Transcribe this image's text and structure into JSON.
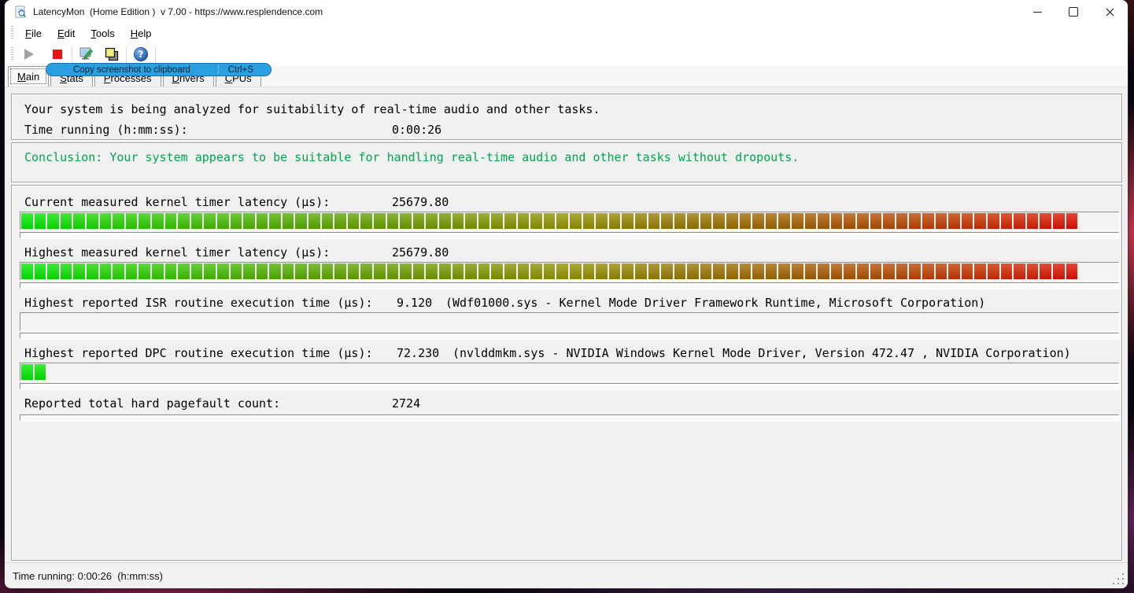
{
  "window": {
    "title": "LatencyMon  (Home Edition )  v 7.00 - https://www.resplendence.com"
  },
  "menu": {
    "items": [
      "File",
      "Edit",
      "Tools",
      "Help"
    ]
  },
  "toolbar": {
    "icons": [
      "start-icon",
      "stop-icon",
      "screenshot-tool-icon",
      "copy-screenshot-icon",
      "help-icon"
    ],
    "tooltip": {
      "label": "Copy screenshot to clipboard",
      "shortcut": "Ctrl+S"
    }
  },
  "tabs": [
    {
      "label": "Main",
      "selected": true
    },
    {
      "label": "Stats",
      "selected": false
    },
    {
      "label": "Processes",
      "selected": false
    },
    {
      "label": "Drivers",
      "selected": false
    },
    {
      "label": "CPUs",
      "selected": false
    }
  ],
  "main": {
    "status_line": "Your system is being analyzed for suitability of real-time audio and other tasks.",
    "time_running": {
      "label": "Time running (h:mm:ss):",
      "value": "0:00:26"
    },
    "conclusion": {
      "text": "Conclusion: Your system appears to be suitable for handling real-time audio and other tasks without dropouts.",
      "color": "#00a44c"
    },
    "stats": [
      {
        "label": "Current measured kernel timer latency (µs):",
        "value": "25679.80",
        "info": "",
        "meter": {
          "filled": 81,
          "total": 84
        }
      },
      {
        "label": "Highest measured kernel timer latency (µs):",
        "value": "25679.80",
        "info": "",
        "meter": {
          "filled": 81,
          "total": 84
        }
      },
      {
        "label": "Highest reported ISR routine execution time (µs):",
        "value": "9.120",
        "info": "(Wdf01000.sys - Kernel Mode Driver Framework Runtime, Microsoft Corporation)",
        "meter": {
          "filled": 0,
          "total": 84
        }
      },
      {
        "label": "Highest reported DPC routine execution time (µs):",
        "value": "72.230",
        "info": "(nvlddmkm.sys - NVIDIA Windows Kernel Mode Driver, Version 472.47 , NVIDIA Corporation)",
        "meter": {
          "filled": 2,
          "total": 84
        }
      },
      {
        "label": "Reported total hard pagefault count:",
        "value": "2724",
        "info": "",
        "meter": null
      }
    ],
    "meter_colors": {
      "start": "#00eb00",
      "end": "#eb0000"
    }
  },
  "statusbar": {
    "text": "Time running: 0:00:26  (h:mm:ss)"
  }
}
